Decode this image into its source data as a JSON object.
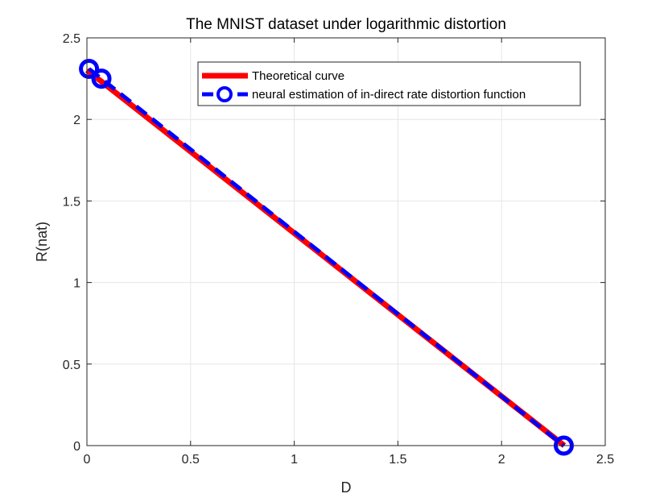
{
  "chart_data": {
    "type": "line",
    "title": "The MNIST dataset under logarithmic distortion",
    "xlabel": "D",
    "ylabel": "R(nat)",
    "xlim": [
      0,
      2.5
    ],
    "ylim": [
      0,
      2.5
    ],
    "xticks": [
      0,
      0.5,
      1,
      1.5,
      2,
      2.5
    ],
    "yticks": [
      0,
      0.5,
      1,
      1.5,
      2,
      2.5
    ],
    "xtick_labels": [
      "0",
      "0.5",
      "1",
      "1.5",
      "2",
      "2.5"
    ],
    "ytick_labels": [
      "0",
      "0.5",
      "1",
      "1.5",
      "2",
      "2.5"
    ],
    "grid": true,
    "legend_position": "top-right",
    "series": [
      {
        "name": "Theoretical curve",
        "style": "solid",
        "marker": "none",
        "color": "#ff0000",
        "x": [
          0,
          2.3026
        ],
        "y": [
          2.3026,
          0
        ]
      },
      {
        "name": "neural estimation of in-direct rate distortion function",
        "style": "dashed",
        "marker": "circle",
        "color": "#0000ff",
        "x": [
          0.01,
          0.07,
          2.3
        ],
        "y": [
          2.31,
          2.25,
          0
        ]
      }
    ]
  }
}
